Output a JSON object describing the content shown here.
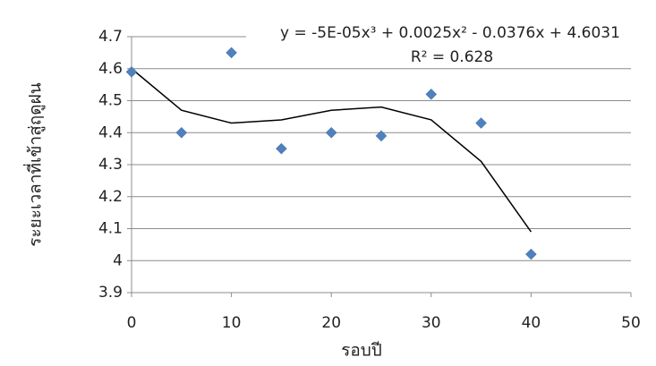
{
  "chart_data": {
    "type": "scatter",
    "y_label": "ระยะเวลาที่เข้าสู่ฤดูฝน",
    "x_label": "รอบปี",
    "equation": "y = -5E-05x³ + 0.0025x² - 0.0376x + 4.6031",
    "r_squared": "R² = 0.628",
    "x": [
      0,
      5,
      10,
      15,
      20,
      25,
      30,
      35,
      40
    ],
    "values": [
      4.59,
      4.4,
      4.65,
      4.35,
      4.4,
      4.39,
      4.52,
      4.43,
      4.02
    ],
    "color": "#4f81bd",
    "trendline": {
      "x": [
        0,
        5,
        10,
        15,
        20,
        25,
        30,
        35,
        40
      ],
      "values": [
        4.6,
        4.47,
        4.43,
        4.44,
        4.47,
        4.48,
        4.44,
        4.31,
        4.09
      ],
      "color": "#000000"
    },
    "xlim": [
      0,
      50
    ],
    "xticks": [
      0,
      10,
      20,
      30,
      40,
      50
    ],
    "ylim": [
      3.9,
      4.7
    ],
    "yticks": [
      3.9,
      4,
      4.1,
      4.2,
      4.3,
      4.4,
      4.5,
      4.6,
      4.7
    ],
    "grid": true
  }
}
